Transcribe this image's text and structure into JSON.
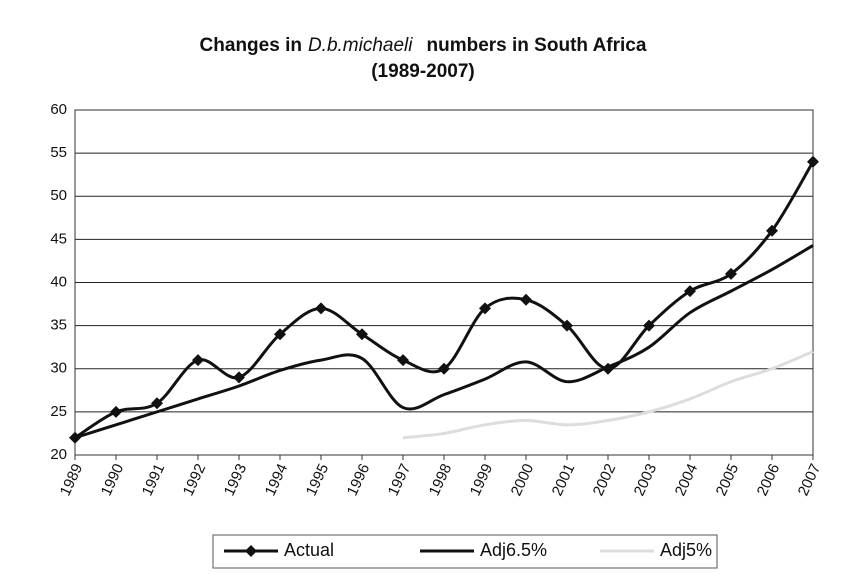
{
  "chart_data": {
    "type": "line",
    "title": [
      "Changes in",
      "D.b.michaeli",
      "numbers in South Africa"
    ],
    "subtitle": "(1989-2007)",
    "categories": [
      "1989",
      "1990",
      "1991",
      "1992",
      "1993",
      "1994",
      "1995",
      "1996",
      "1997",
      "1998",
      "1999",
      "2000",
      "2001",
      "2002",
      "2003",
      "2004",
      "2005",
      "2006",
      "2007"
    ],
    "series": [
      {
        "name": "Actual",
        "color": "#111111",
        "marker": "diamond",
        "values": [
          22,
          25,
          26,
          31,
          29,
          34,
          37,
          34,
          31,
          30,
          37,
          38,
          35,
          30,
          35,
          39,
          41,
          46,
          54
        ]
      },
      {
        "name": "Adj6.5%",
        "color": "#111111",
        "values": [
          22,
          23.5,
          25,
          26.5,
          28,
          29.8,
          31,
          31.2,
          25.5,
          27,
          28.8,
          30.8,
          28.5,
          30.2,
          32.5,
          36.5,
          39,
          41.5,
          44.3
        ]
      },
      {
        "name": "Adj5%",
        "color": "#dddddd",
        "values": [
          null,
          null,
          null,
          null,
          null,
          null,
          null,
          null,
          22,
          22.5,
          23.5,
          24,
          23.5,
          24,
          25,
          26.5,
          28.5,
          30,
          32
        ]
      }
    ],
    "ylim": [
      20,
      60
    ],
    "yticks": [
      20,
      25,
      30,
      35,
      40,
      45,
      50,
      55,
      60
    ],
    "grid": true,
    "smooth": true,
    "legend": "bottom"
  }
}
